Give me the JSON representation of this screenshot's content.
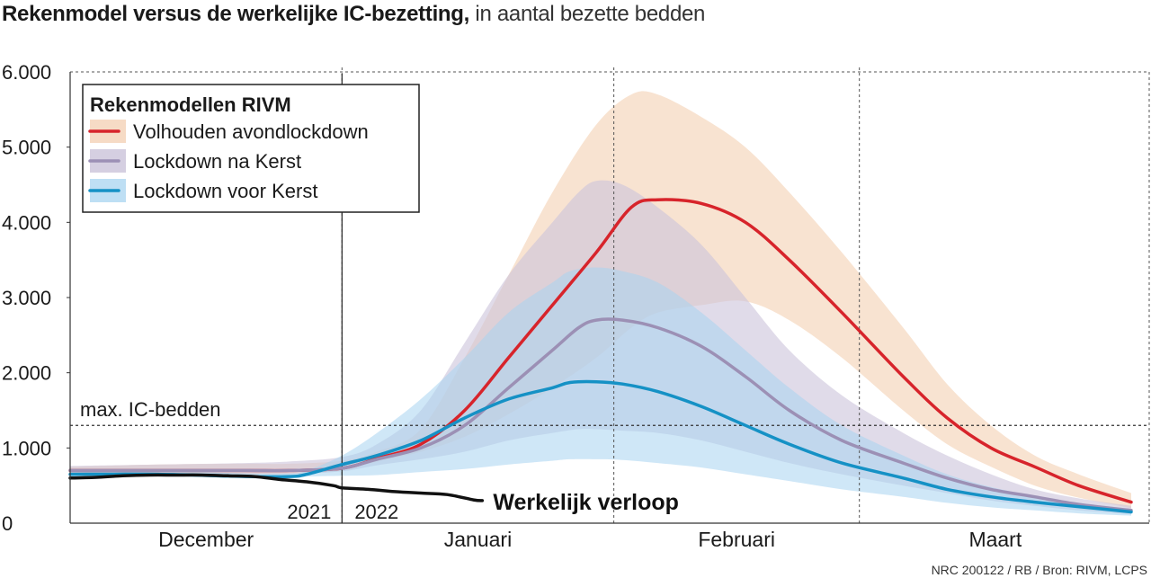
{
  "title": {
    "bold": "Rekenmodel versus de werkelijke IC-bezetting,",
    "normal": "in aantal bezette bedden"
  },
  "source": "NRC 200122 / RB / Bron: RIVM, LCPS",
  "chart_data": {
    "type": "line",
    "title": "Rekenmodel versus de werkelijke IC-bezetting, in aantal bezette bedden",
    "ylim": [
      0,
      6000
    ],
    "y_ticks": [
      "0",
      "1.000",
      "2.000",
      "3.000",
      "4.000",
      "5.000",
      "6.000"
    ],
    "y_tick_values": [
      0,
      1000,
      2000,
      3000,
      4000,
      5000,
      6000
    ],
    "x_unit": "days since 1 December 2021",
    "xlim": [
      0,
      121
    ],
    "months": [
      "December",
      "Januari",
      "Februari",
      "Maart"
    ],
    "month_centers": [
      15.5,
      46.5,
      76,
      105.5
    ],
    "month_boundaries": [
      31,
      62,
      90
    ],
    "grid": "dashed vertical lines at month boundaries",
    "year_labels": {
      "before": "2021",
      "after": "2022"
    },
    "reference_line": {
      "label": "max. IC-bedden",
      "y": 1300
    },
    "legend": {
      "title": "Rekenmodellen RIVM",
      "position": "top-left"
    },
    "series": [
      {
        "name": "Volhouden avondlockdown",
        "color": "#d7242b",
        "band_color": "#f6d9c2",
        "band_opacity": 0.75,
        "x": [
          0,
          10,
          20,
          25,
          31,
          35,
          40,
          45,
          50,
          55,
          60,
          64,
          67,
          72,
          77,
          82,
          88,
          95,
          100,
          105,
          110,
          115,
          121
        ],
        "y": [
          700,
          700,
          700,
          700,
          730,
          860,
          1050,
          1500,
          2200,
          2900,
          3600,
          4200,
          4300,
          4250,
          4000,
          3500,
          2800,
          1950,
          1400,
          1000,
          750,
          500,
          280
        ],
        "low": [
          650,
          650,
          650,
          650,
          700,
          820,
          950,
          1150,
          1450,
          1800,
          2200,
          2600,
          2800,
          2900,
          2950,
          2700,
          2200,
          1500,
          1050,
          750,
          500,
          340,
          200
        ],
        "high": [
          750,
          780,
          790,
          790,
          830,
          950,
          1250,
          2200,
          3300,
          4400,
          5300,
          5700,
          5700,
          5400,
          5000,
          4400,
          3600,
          2600,
          1850,
          1300,
          900,
          650,
          400
        ]
      },
      {
        "name": "Lockdown na Kerst",
        "color": "#9c90b5",
        "band_color": "#cbc3da",
        "band_opacity": 0.6,
        "x": [
          0,
          10,
          20,
          25,
          31,
          35,
          40,
          45,
          50,
          55,
          58,
          60,
          63,
          67,
          72,
          77,
          82,
          88,
          95,
          100,
          105,
          110,
          115,
          121
        ],
        "y": [
          700,
          700,
          700,
          700,
          730,
          850,
          1000,
          1300,
          1800,
          2300,
          2600,
          2700,
          2700,
          2600,
          2350,
          1950,
          1500,
          1100,
          800,
          600,
          450,
          350,
          250,
          170
        ],
        "low": [
          650,
          650,
          650,
          650,
          690,
          770,
          850,
          950,
          1100,
          1200,
          1250,
          1250,
          1230,
          1200,
          1100,
          950,
          800,
          650,
          500,
          400,
          300,
          230,
          170,
          120
        ],
        "high": [
          760,
          780,
          800,
          820,
          880,
          1050,
          1500,
          2400,
          3300,
          4000,
          4400,
          4550,
          4500,
          4200,
          3700,
          3000,
          2300,
          1700,
          1200,
          900,
          650,
          450,
          330,
          230
        ]
      },
      {
        "name": "Lockdown voor Kerst",
        "color": "#1591c5",
        "band_color": "#a8d4f0",
        "band_opacity": 0.55,
        "x": [
          0,
          10,
          20,
          25,
          27,
          31,
          35,
          40,
          45,
          50,
          55,
          57,
          60,
          63,
          67,
          72,
          77,
          82,
          88,
          95,
          100,
          105,
          110,
          115,
          121
        ],
        "y": [
          650,
          650,
          620,
          620,
          650,
          780,
          900,
          1100,
          1400,
          1650,
          1800,
          1870,
          1880,
          1850,
          1750,
          1550,
          1300,
          1050,
          800,
          600,
          450,
          350,
          280,
          220,
          150
        ],
        "low": [
          620,
          620,
          610,
          610,
          620,
          630,
          640,
          680,
          720,
          780,
          830,
          850,
          850,
          840,
          800,
          740,
          650,
          560,
          450,
          350,
          270,
          210,
          170,
          130,
          100
        ],
        "high": [
          700,
          700,
          660,
          660,
          700,
          900,
          1200,
          1650,
          2200,
          2800,
          3200,
          3350,
          3400,
          3350,
          3200,
          2800,
          2300,
          1800,
          1300,
          900,
          650,
          480,
          360,
          270,
          190
        ]
      }
    ],
    "actual": {
      "name": "Werkelijk verloop",
      "color": "#111111",
      "x": [
        0,
        3,
        6,
        9,
        12,
        15,
        18,
        21,
        24,
        27,
        30,
        31,
        34,
        37,
        40,
        43,
        46,
        47
      ],
      "y": [
        600,
        610,
        630,
        640,
        640,
        640,
        630,
        620,
        580,
        550,
        500,
        470,
        450,
        420,
        400,
        380,
        310,
        300
      ]
    }
  }
}
